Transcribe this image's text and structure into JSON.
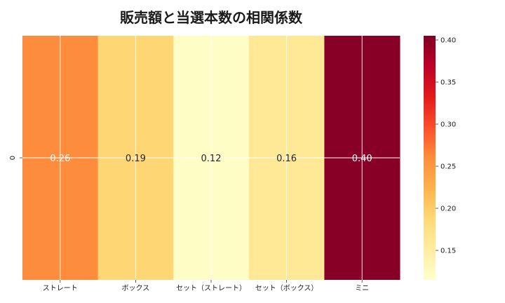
{
  "chart_data": {
    "type": "heatmap",
    "title": "販売額と当選本数の相関係数",
    "rows": [
      "0"
    ],
    "columns": [
      "ストレート",
      "ボックス",
      "セット（ストレート）",
      "セット（ボックス）",
      "ミニ"
    ],
    "values": [
      [
        0.26,
        0.19,
        0.12,
        0.16,
        0.4
      ]
    ],
    "value_labels": [
      "0.26",
      "0.19",
      "0.12",
      "0.16",
      "0.40"
    ],
    "colorbar": {
      "range": [
        0.115,
        0.405
      ],
      "ticks": [
        "0.15",
        "0.20",
        "0.25",
        "0.30",
        "0.35",
        "0.40"
      ],
      "tick_values": [
        0.15,
        0.2,
        0.25,
        0.3,
        0.35,
        0.4
      ],
      "colormap": "YlOrRd"
    },
    "grid": true
  }
}
